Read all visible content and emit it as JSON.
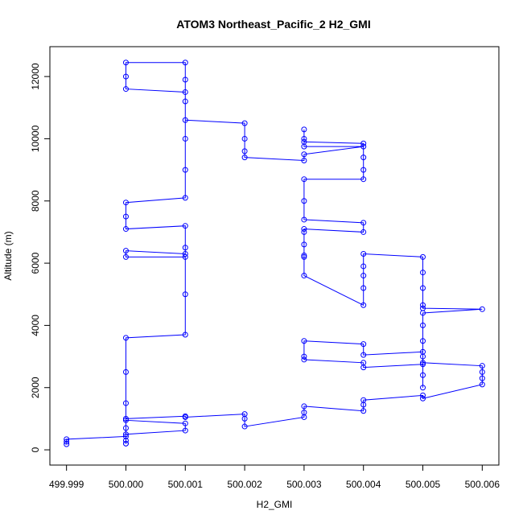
{
  "chart_data": {
    "type": "line",
    "markers": "circle",
    "title": "ATOM3 Northeast_Pacific_2 H2_GMI",
    "x_label": "H2_GMI",
    "y_label": "Altitude (m)",
    "color": "#0000ff",
    "x": [
      499.999,
      499.999,
      499.999,
      500.0,
      500.0,
      500.0,
      500.0,
      500.001,
      500.001,
      500.0,
      500.0,
      500.001,
      500.001,
      500.002,
      500.002,
      500.002,
      500.003,
      500.003,
      500.003,
      500.004,
      500.004,
      500.004,
      500.005,
      500.005,
      500.006,
      500.006,
      500.006,
      500.006,
      500.005,
      500.005,
      500.005,
      500.004,
      500.004,
      500.003,
      500.003,
      500.003,
      500.004,
      500.004,
      500.005,
      500.005,
      500.005,
      500.005,
      500.005,
      500.005,
      500.006,
      500.005,
      500.005,
      500.005,
      500.005,
      500.005,
      500.004,
      500.004,
      500.004,
      500.004,
      500.004,
      500.003,
      500.003,
      500.003,
      500.003,
      500.003,
      500.003,
      500.004,
      500.004,
      500.003,
      500.003,
      500.003,
      500.004,
      500.004,
      500.004,
      500.004,
      500.003,
      500.003,
      500.003,
      500.003,
      500.004,
      500.003,
      500.003,
      500.002,
      500.002,
      500.002,
      500.002,
      500.001,
      500.001,
      500.001,
      500.001,
      500.0,
      500.0,
      500.0,
      500.001,
      500.001,
      500.001,
      500.001,
      500.0,
      500.0,
      500.0,
      500.001,
      500.001,
      500.001,
      500.0,
      500.0,
      500.001,
      500.001,
      500.001,
      500.0,
      500.0,
      500.0,
      500.0,
      500.0
    ],
    "values": [
      180,
      260,
      340,
      430,
      200,
      300,
      500,
      620,
      850,
      950,
      1000,
      1080,
      1050,
      1150,
      1000,
      750,
      1050,
      1200,
      1400,
      1250,
      1450,
      1600,
      1750,
      1650,
      2100,
      2300,
      2500,
      2700,
      2800,
      3000,
      3150,
      3050,
      3400,
      3500,
      3000,
      2900,
      2800,
      2650,
      2750,
      2400,
      2000,
      3500,
      4000,
      4400,
      4520,
      4550,
      4650,
      5200,
      5700,
      6200,
      6300,
      5900,
      5600,
      5200,
      4650,
      5600,
      6200,
      6250,
      6600,
      7000,
      7100,
      7000,
      7300,
      7400,
      8000,
      8700,
      8700,
      9000,
      9400,
      9850,
      9900,
      10300,
      10000,
      9750,
      9750,
      9500,
      9300,
      9400,
      9600,
      10000,
      10500,
      10600,
      11200,
      11900,
      12450,
      12450,
      12000,
      11600,
      11500,
      10000,
      9000,
      8100,
      7950,
      7500,
      7100,
      7200,
      6500,
      6300,
      6400,
      6200,
      6200,
      5000,
      3700,
      3600,
      2500,
      1500,
      700,
      200
    ],
    "xlim": [
      499.99872,
      500.00628
    ],
    "ylim": [
      -490,
      12960
    ],
    "xticks": [
      499.999,
      {
        "value": 500.0,
        "label": "500.000"
      },
      500.001,
      500.002,
      500.003,
      500.004,
      500.005,
      500.006
    ],
    "yticks": [
      0,
      2000,
      4000,
      6000,
      8000,
      10000,
      12000
    ]
  }
}
